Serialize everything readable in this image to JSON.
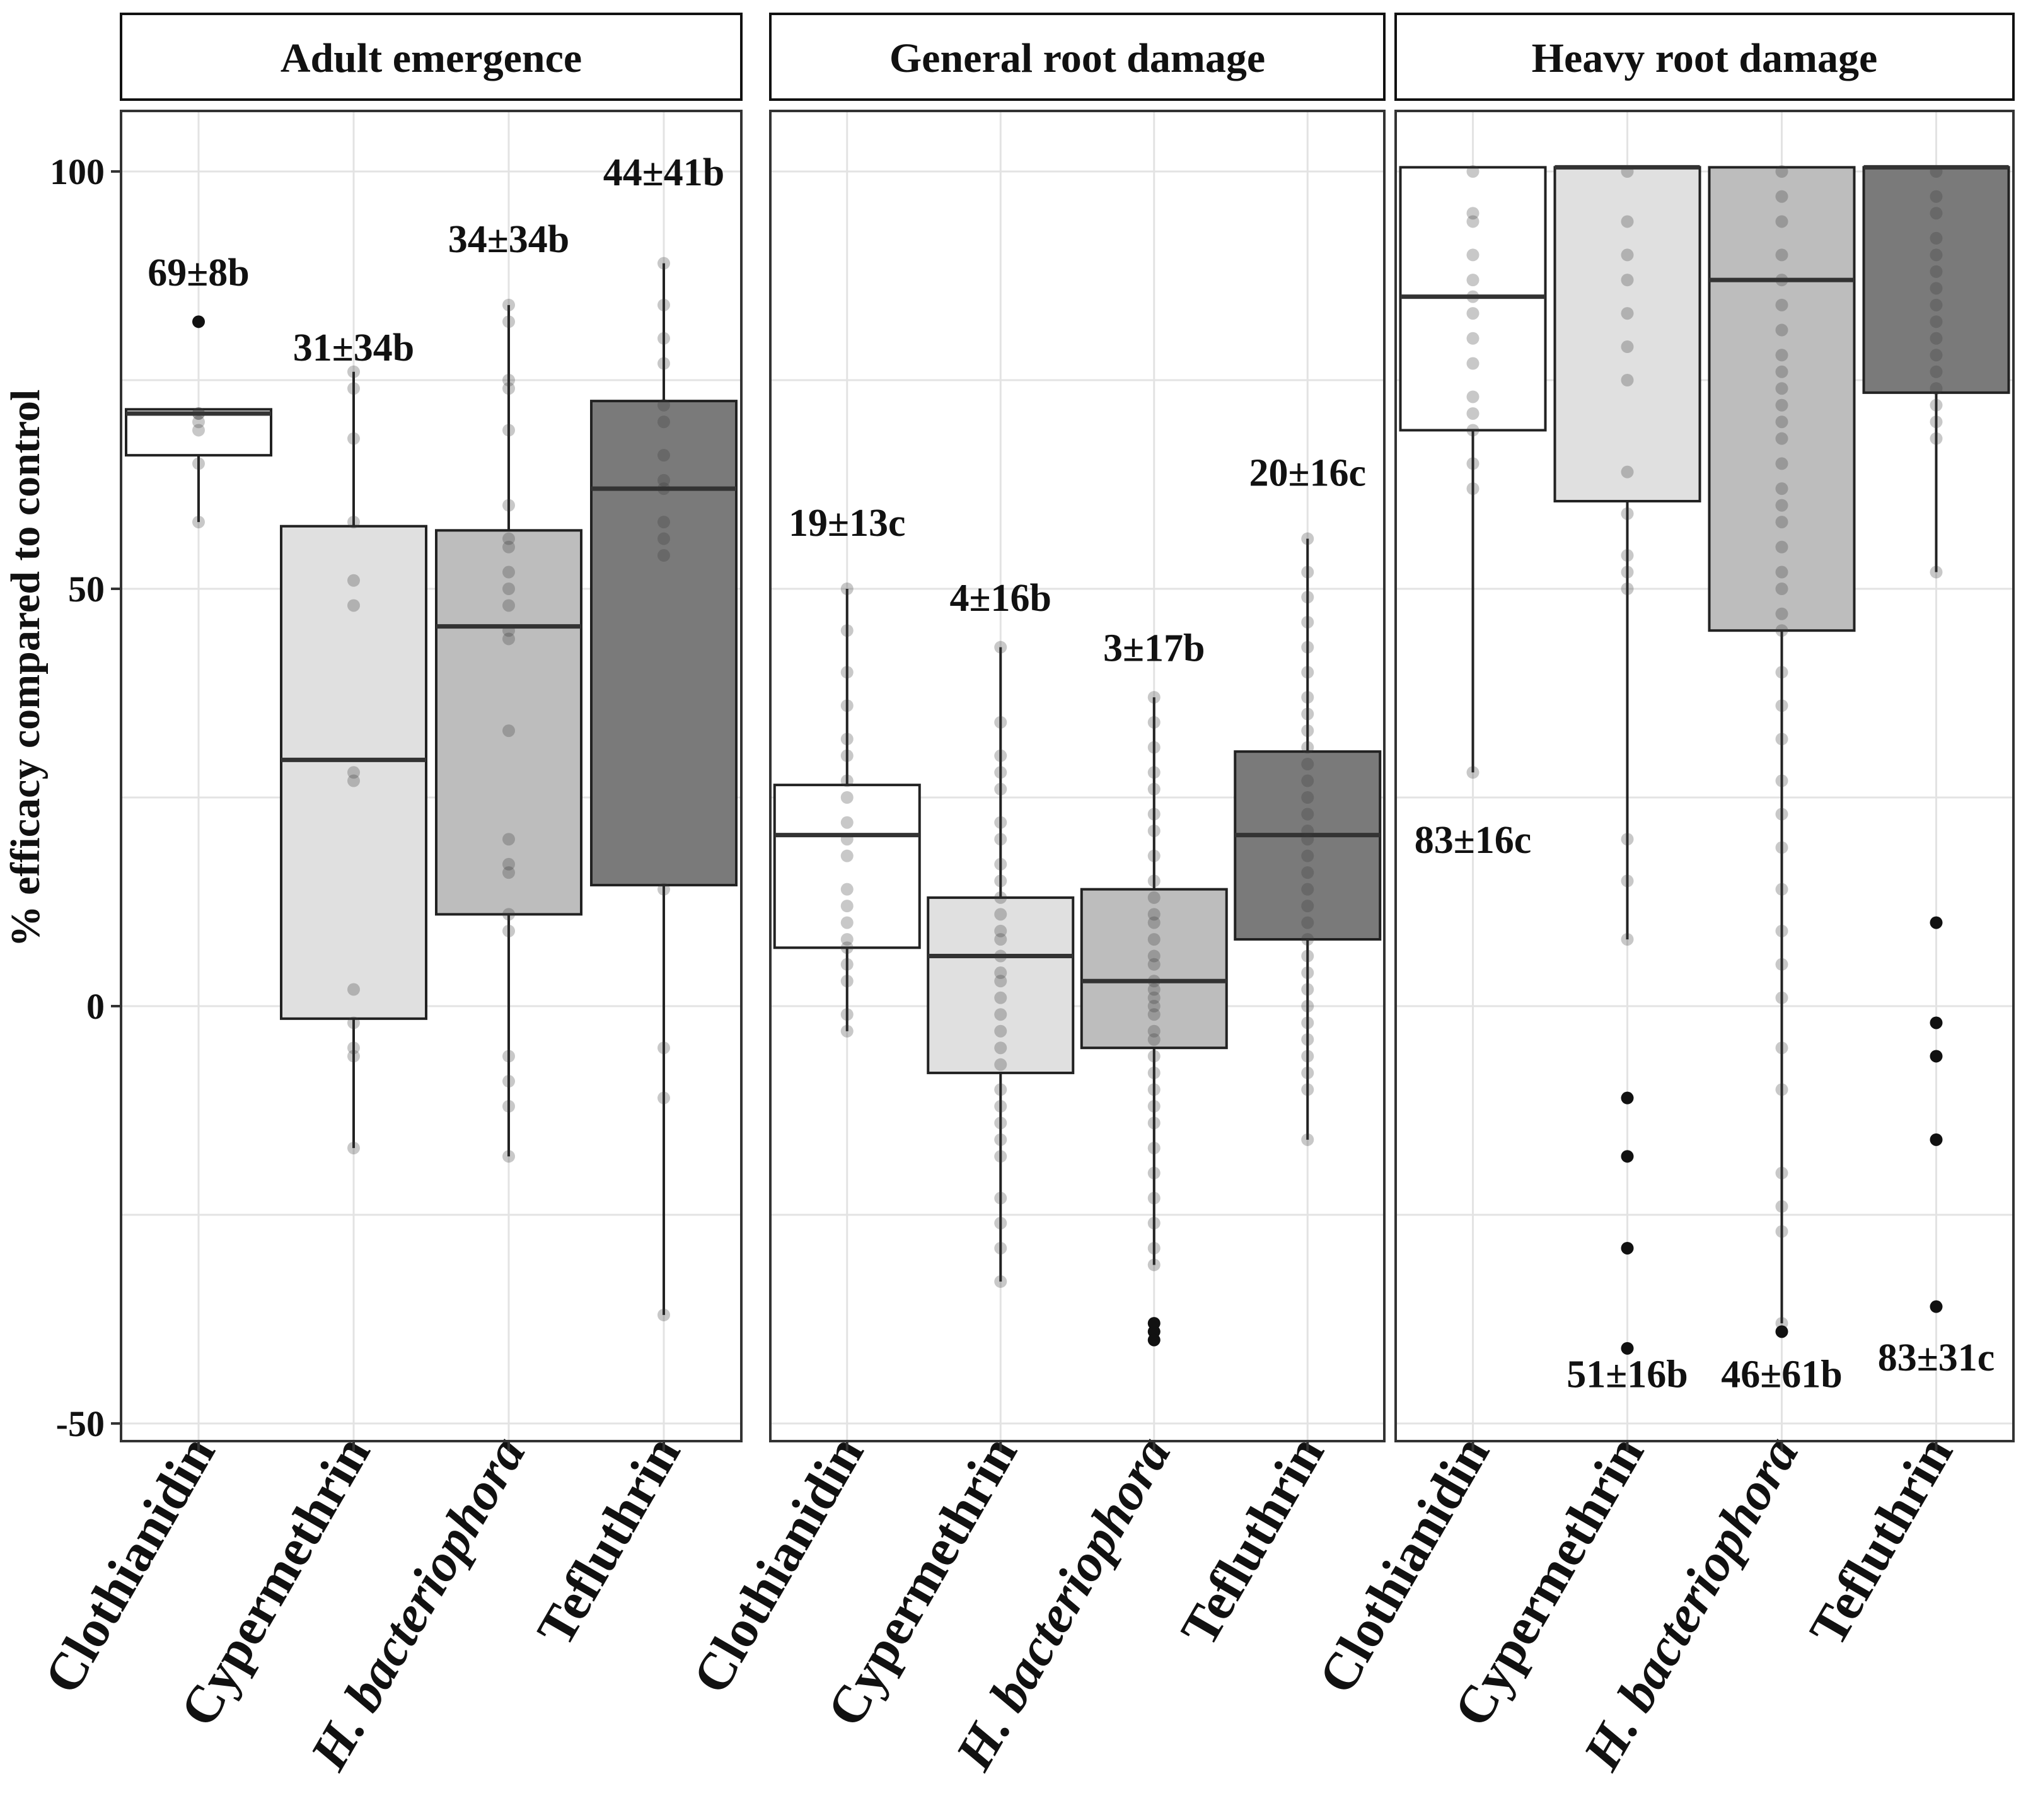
{
  "chart_data": {
    "type": "boxplot",
    "ylabel": "% efficacy compared to control",
    "ylim": [
      -52,
      107
    ],
    "y_ticks": [
      100,
      50,
      0,
      -50
    ],
    "y_tick_labels": [
      "100",
      "50",
      "0",
      "-50"
    ],
    "categories": [
      "Clothianidin",
      "Cypermethrin",
      "H. bacteriophora",
      "Tefluthrin"
    ],
    "fills": [
      "#ffffff",
      "#e0e0e0",
      "#bdbdbd",
      "#7a7a7a"
    ],
    "panels": [
      {
        "title": "Adult emergence",
        "groups": [
          {
            "category": "Clothianidin",
            "q1": 66,
            "median": 71,
            "q3": 71.5,
            "wlow": 58,
            "whigh": 71.5,
            "annotation": "69±8b",
            "label_y": 88,
            "points": [
              70,
              71,
              65,
              58,
              71,
              69
            ],
            "outliers": [
              82
            ]
          },
          {
            "category": "Cypermethrin",
            "q1": -1.5,
            "median": 29.5,
            "q3": 57.5,
            "wlow": -17,
            "whigh": 76,
            "annotation": "31±34b",
            "label_y": 79,
            "points": [
              76,
              74,
              68,
              58,
              51,
              48,
              28,
              27,
              2,
              -2,
              -5,
              -6,
              -17
            ],
            "outliers": []
          },
          {
            "category": "H. bacteriophora",
            "q1": 11,
            "median": 45.5,
            "q3": 57,
            "wlow": -18,
            "whigh": 84,
            "annotation": "34±34b",
            "label_y": 92,
            "points": [
              84,
              82,
              75,
              74,
              69,
              60,
              56,
              55,
              52,
              50,
              48,
              45,
              44,
              33,
              20,
              17,
              16,
              11,
              9,
              -6,
              -9,
              -12,
              -18
            ],
            "outliers": []
          },
          {
            "category": "Tefluthrin",
            "q1": 14.5,
            "median": 62,
            "q3": 72.5,
            "wlow": -37,
            "whigh": 89,
            "annotation": "44±41b",
            "label_y": 100,
            "points": [
              89,
              84,
              80,
              77,
              72,
              70,
              66,
              63,
              62,
              58,
              56,
              54,
              14,
              -5,
              -11,
              -37
            ],
            "outliers": []
          }
        ]
      },
      {
        "title": "General root damage",
        "groups": [
          {
            "category": "Clothianidin",
            "q1": 7,
            "median": 20.5,
            "q3": 26.5,
            "wlow": -3,
            "whigh": 50,
            "annotation": "19±13c",
            "label_y": 58,
            "points": [
              50,
              45,
              40,
              36,
              32,
              30,
              27,
              25,
              22,
              20,
              18,
              14,
              12,
              10,
              8,
              7,
              5,
              3,
              -1,
              -3
            ],
            "outliers": []
          },
          {
            "category": "Cypermethrin",
            "q1": -8,
            "median": 6,
            "q3": 13,
            "wlow": -33,
            "whigh": 43,
            "annotation": "4±16b",
            "label_y": 49,
            "points": [
              43,
              34,
              30,
              28,
              26,
              22,
              20,
              17,
              15,
              13,
              11,
              9,
              8,
              6,
              4,
              3,
              1,
              -1,
              -3,
              -5,
              -7,
              -10,
              -12,
              -14,
              -16,
              -18,
              -23,
              -26,
              -29,
              -33
            ],
            "outliers": []
          },
          {
            "category": "H. bacteriophora",
            "q1": -5,
            "median": 3,
            "q3": 14,
            "wlow": -31,
            "whigh": 37,
            "annotation": "3±17b",
            "label_y": 43,
            "points": [
              37,
              34,
              31,
              28,
              26,
              23,
              21,
              18,
              15,
              13,
              11,
              10,
              8,
              6,
              5,
              3,
              2,
              1,
              0,
              -1,
              -3,
              -4,
              -6,
              -8,
              -10,
              -12,
              -14,
              -17,
              -20,
              -23,
              -26,
              -29,
              -31
            ],
            "outliers": [
              -38,
              -39,
              -40
            ]
          },
          {
            "category": "Tefluthrin",
            "q1": 8,
            "median": 20.5,
            "q3": 30.5,
            "wlow": -16,
            "whigh": 56,
            "annotation": "20±16c",
            "label_y": 64,
            "points": [
              56,
              52,
              49,
              46,
              43,
              40,
              37,
              35,
              33,
              31,
              29,
              27,
              25,
              23,
              21,
              20,
              18,
              16,
              14,
              12,
              10,
              8,
              6,
              4,
              2,
              0,
              -2,
              -4,
              -6,
              -8,
              -10,
              -16
            ],
            "outliers": []
          }
        ]
      },
      {
        "title": "Heavy root damage",
        "groups": [
          {
            "category": "Clothianidin",
            "q1": 69,
            "median": 85,
            "q3": 100.5,
            "wlow": 28,
            "whigh": 100.5,
            "annotation": "83±16c",
            "label_y": 20,
            "points": [
              100,
              95,
              94,
              90,
              87,
              85,
              83,
              80,
              77,
              73,
              71,
              69,
              65,
              62,
              28
            ],
            "outliers": []
          },
          {
            "category": "Cypermethrin",
            "q1": 60.5,
            "median": 100.5,
            "q3": 100.5,
            "wlow": 8,
            "whigh": 100.5,
            "annotation": "51±16b",
            "label_y": -44,
            "points": [
              100,
              94,
              90,
              87,
              83,
              79,
              75,
              64,
              59,
              54,
              52,
              50,
              20,
              15,
              8
            ],
            "outliers": [
              -11,
              -18,
              -29,
              -41
            ]
          },
          {
            "category": "H. bacteriophora",
            "q1": 45,
            "median": 87,
            "q3": 100.5,
            "wlow": -38,
            "whigh": 100.5,
            "annotation": "46±61b",
            "label_y": -44,
            "points": [
              100,
              97,
              94,
              90,
              87,
              84,
              81,
              78,
              76,
              74,
              72,
              70,
              68,
              65,
              62,
              60,
              58,
              55,
              52,
              50,
              47,
              45,
              40,
              36,
              32,
              27,
              23,
              19,
              14,
              9,
              5,
              1,
              -5,
              -10,
              -20,
              -24,
              -27,
              -38
            ],
            "outliers": [
              -39
            ]
          },
          {
            "category": "Tefluthrin",
            "q1": 73.5,
            "median": 100.5,
            "q3": 100.5,
            "wlow": 52,
            "whigh": 100.5,
            "annotation": "83±31c",
            "label_y": -42,
            "points": [
              100,
              97,
              95,
              92,
              90,
              88,
              86,
              84,
              82,
              80,
              78,
              76,
              74,
              72,
              70,
              68,
              52
            ],
            "outliers": [
              10,
              -2,
              -6,
              -16,
              -36
            ]
          }
        ]
      }
    ]
  }
}
